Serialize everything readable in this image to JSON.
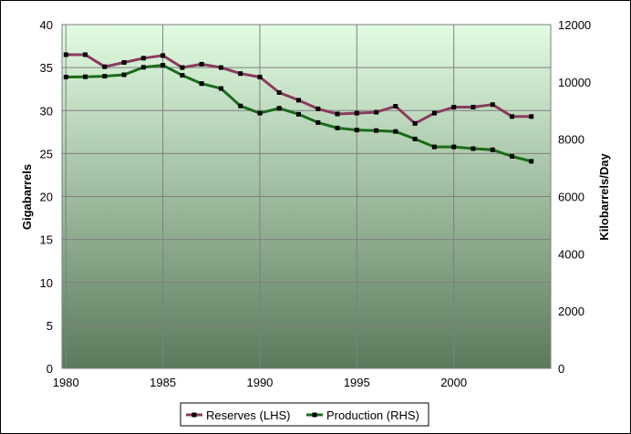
{
  "chart_data": {
    "type": "line",
    "x": [
      1980,
      1981,
      1982,
      1983,
      1984,
      1985,
      1986,
      1987,
      1988,
      1989,
      1990,
      1991,
      1992,
      1993,
      1994,
      1995,
      1996,
      1997,
      1998,
      1999,
      2000,
      2001,
      2002,
      2003,
      2004
    ],
    "x_tick_labels": [
      "1980",
      "1985",
      "1990",
      "1995",
      "2000"
    ],
    "xlim": [
      1979.8,
      2005.0
    ],
    "ylabel_left": "Gigabarrels",
    "ylabel_right": "Kilobarrels/Day",
    "ylim_left": [
      0,
      40
    ],
    "ylim_right": [
      0,
      12000
    ],
    "left_ticks": [
      "0",
      "5",
      "10",
      "15",
      "20",
      "25",
      "30",
      "35",
      "40"
    ],
    "right_ticks": [
      "0",
      "2000",
      "4000",
      "6000",
      "8000",
      "10000",
      "12000"
    ],
    "grid": true,
    "legend_position": "bottom",
    "series": [
      {
        "name": "Reserves (LHS)",
        "axis": "left",
        "color": "#8b3a5e",
        "values": [
          36.5,
          36.5,
          35.1,
          35.6,
          36.1,
          36.4,
          35.0,
          35.4,
          35.0,
          34.3,
          33.9,
          32.1,
          31.2,
          30.2,
          29.6,
          29.7,
          29.8,
          30.5,
          28.5,
          29.7,
          30.4,
          30.4,
          30.7,
          29.3,
          29.3
        ]
      },
      {
        "name": "Production (RHS)",
        "axis": "right",
        "color": "#1a6b1a",
        "values": [
          10170,
          10180,
          10200,
          10250,
          10510,
          10580,
          10230,
          9940,
          9770,
          9160,
          8910,
          9080,
          8870,
          8580,
          8390,
          8320,
          8300,
          8270,
          8010,
          7730,
          7730,
          7670,
          7630,
          7400,
          7230
        ]
      }
    ],
    "colors": {
      "plot_top": "#e2fce2",
      "plot_bottom": "#5b7a5b",
      "grid": "#7f7f7f"
    }
  }
}
